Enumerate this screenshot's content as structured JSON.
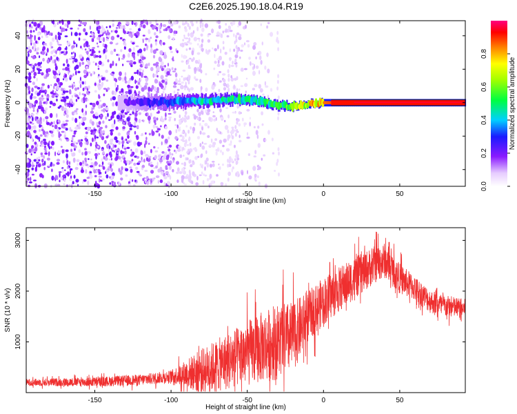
{
  "title": "C2E6.2025.190.18.04.R19",
  "chart_data": [
    {
      "type": "heatmap",
      "xlabel": "Height of straight line (km)",
      "ylabel": "Frequency (Hz)",
      "xlim": [
        -195,
        93
      ],
      "ylim": [
        -50,
        49
      ],
      "x_ticks": [
        -150,
        -100,
        -50,
        0,
        50
      ],
      "y_ticks": [
        -40,
        -20,
        0,
        20,
        40
      ],
      "colorbar": {
        "label": "Normalized spectral amplitude",
        "range": [
          0,
          1
        ],
        "ticks": [
          "0.0",
          "0.2",
          "0.4",
          "0.6",
          "0.8"
        ],
        "tick_values": [
          0,
          0.2,
          0.4,
          0.6,
          0.8
        ]
      },
      "ridge": {
        "description_x": [
          -130,
          -100,
          -80,
          -60,
          -45,
          -30,
          -20,
          -10,
          0,
          10,
          20,
          50,
          93
        ],
        "freq": [
          0,
          0.5,
          1,
          2,
          1.5,
          -1.5,
          -2,
          -1,
          0,
          0,
          0,
          0,
          0
        ],
        "amplitude": [
          0.2,
          0.35,
          0.45,
          0.5,
          0.5,
          0.55,
          0.65,
          0.75,
          0.85,
          0.9,
          0.92,
          0.95,
          0.95
        ]
      },
      "noise_extent_x": [
        -195,
        -95
      ],
      "grid": false
    },
    {
      "type": "line",
      "xlabel": "Height of straight line (km)",
      "ylabel": "SNR (10 * v/v)",
      "xlim": [
        -195,
        93
      ],
      "ylim": [
        0,
        3250
      ],
      "x_ticks": [
        -150,
        -100,
        -50,
        0,
        50
      ],
      "y_ticks": [
        1000,
        2000,
        3000
      ],
      "envelope": {
        "x": [
          -195,
          -150,
          -120,
          -100,
          -80,
          -60,
          -40,
          -20,
          -10,
          0,
          20,
          35,
          40,
          50,
          60,
          70,
          80,
          93
        ],
        "y": [
          200,
          210,
          250,
          320,
          420,
          650,
          900,
          1100,
          1500,
          1800,
          2250,
          2550,
          2600,
          2250,
          2050,
          1800,
          1700,
          1650
        ]
      },
      "noise_amplitude": {
        "x": [
          -195,
          -100,
          -80,
          -50,
          -30,
          -20,
          -10,
          10,
          40,
          60,
          93
        ],
        "y": [
          70,
          120,
          450,
          650,
          750,
          700,
          500,
          450,
          350,
          250,
          200
        ]
      },
      "color": "#ef2f2f",
      "grid": false
    }
  ]
}
